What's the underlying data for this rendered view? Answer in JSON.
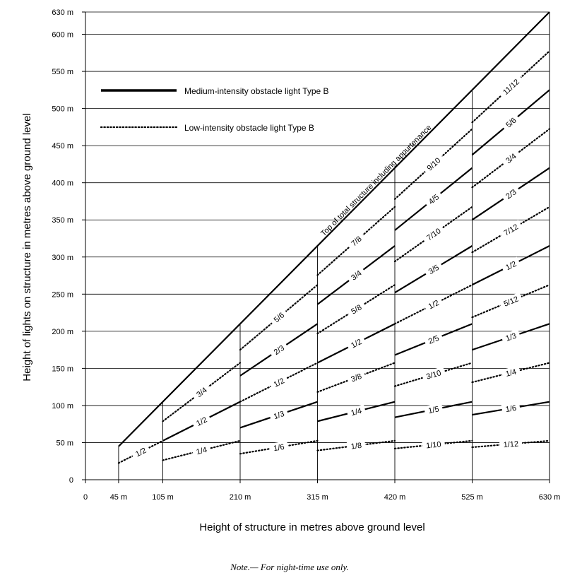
{
  "chart_data": {
    "type": "line",
    "title": "",
    "xlabel": "Height of structure in metres above ground level",
    "ylabel": "Height of lights on structure in metres above ground level",
    "xlim": [
      0,
      630
    ],
    "ylim": [
      0,
      630
    ],
    "x_ticks": [
      {
        "value": 0,
        "label": "0"
      },
      {
        "value": 45,
        "label": "45 m"
      },
      {
        "value": 105,
        "label": "105 m"
      },
      {
        "value": 210,
        "label": "210 m"
      },
      {
        "value": 315,
        "label": "315 m"
      },
      {
        "value": 420,
        "label": "420 m"
      },
      {
        "value": 525,
        "label": "525 m"
      },
      {
        "value": 630,
        "label": "630 m"
      }
    ],
    "y_ticks": [
      {
        "value": 0,
        "label": "0"
      },
      {
        "value": 50,
        "label": "50 m"
      },
      {
        "value": 100,
        "label": "100 m"
      },
      {
        "value": 150,
        "label": "150 m"
      },
      {
        "value": 200,
        "label": "200 m"
      },
      {
        "value": 250,
        "label": "250 m"
      },
      {
        "value": 300,
        "label": "300 m"
      },
      {
        "value": 350,
        "label": "350 m"
      },
      {
        "value": 400,
        "label": "400 m"
      },
      {
        "value": 450,
        "label": "450 m"
      },
      {
        "value": 500,
        "label": "500 m"
      },
      {
        "value": 550,
        "label": "550 m"
      },
      {
        "value": 600,
        "label": "600 m"
      },
      {
        "value": 630,
        "label": "630 m"
      }
    ],
    "grid": "horizontal",
    "legend": [
      {
        "name": "Medium-intensity obstacle light Type B",
        "style": "solid"
      },
      {
        "name": "Low-intensity obstacle light Type B",
        "style": "dotted"
      }
    ],
    "top_line_label": "Top of total structure including appurtenance",
    "top_line": {
      "x": [
        45,
        630
      ],
      "y": [
        45,
        630
      ]
    },
    "dividers": [
      45,
      105,
      210,
      315,
      420,
      525
    ],
    "segments": [
      {
        "x0": 45,
        "x1": 105,
        "label": "1/2",
        "style": "dotted"
      },
      {
        "x0": 105,
        "x1": 210,
        "label": "3/4",
        "style": "dotted"
      },
      {
        "x0": 105,
        "x1": 210,
        "label": "1/2",
        "style": "solid"
      },
      {
        "x0": 105,
        "x1": 210,
        "label": "1/4",
        "style": "dotted"
      },
      {
        "x0": 210,
        "x1": 315,
        "label": "5/6",
        "style": "dotted"
      },
      {
        "x0": 210,
        "x1": 315,
        "label": "2/3",
        "style": "solid"
      },
      {
        "x0": 210,
        "x1": 315,
        "label": "1/2",
        "style": "dotted"
      },
      {
        "x0": 210,
        "x1": 315,
        "label": "1/3",
        "style": "solid"
      },
      {
        "x0": 210,
        "x1": 315,
        "label": "1/6",
        "style": "dotted"
      },
      {
        "x0": 315,
        "x1": 420,
        "label": "7/8",
        "style": "dotted"
      },
      {
        "x0": 315,
        "x1": 420,
        "label": "3/4",
        "style": "solid"
      },
      {
        "x0": 315,
        "x1": 420,
        "label": "5/8",
        "style": "dotted"
      },
      {
        "x0": 315,
        "x1": 420,
        "label": "1/2",
        "style": "solid"
      },
      {
        "x0": 315,
        "x1": 420,
        "label": "3/8",
        "style": "dotted"
      },
      {
        "x0": 315,
        "x1": 420,
        "label": "1/4",
        "style": "solid"
      },
      {
        "x0": 315,
        "x1": 420,
        "label": "1/8",
        "style": "dotted"
      },
      {
        "x0": 420,
        "x1": 525,
        "label": "9/10",
        "style": "dotted"
      },
      {
        "x0": 420,
        "x1": 525,
        "label": "4/5",
        "style": "solid"
      },
      {
        "x0": 420,
        "x1": 525,
        "label": "7/10",
        "style": "dotted"
      },
      {
        "x0": 420,
        "x1": 525,
        "label": "3/5",
        "style": "solid"
      },
      {
        "x0": 420,
        "x1": 525,
        "label": "1/2",
        "style": "dotted"
      },
      {
        "x0": 420,
        "x1": 525,
        "label": "2/5",
        "style": "solid"
      },
      {
        "x0": 420,
        "x1": 525,
        "label": "3/10",
        "style": "dotted"
      },
      {
        "x0": 420,
        "x1": 525,
        "label": "1/5",
        "style": "solid"
      },
      {
        "x0": 420,
        "x1": 525,
        "label": "1/10",
        "style": "dotted"
      },
      {
        "x0": 525,
        "x1": 630,
        "label": "11/12",
        "style": "dotted"
      },
      {
        "x0": 525,
        "x1": 630,
        "label": "5/6",
        "style": "solid"
      },
      {
        "x0": 525,
        "x1": 630,
        "label": "3/4",
        "style": "dotted"
      },
      {
        "x0": 525,
        "x1": 630,
        "label": "2/3",
        "style": "solid"
      },
      {
        "x0": 525,
        "x1": 630,
        "label": "7/12",
        "style": "dotted"
      },
      {
        "x0": 525,
        "x1": 630,
        "label": "1/2",
        "style": "solid"
      },
      {
        "x0": 525,
        "x1": 630,
        "label": "5/12",
        "style": "dotted"
      },
      {
        "x0": 525,
        "x1": 630,
        "label": "1/3",
        "style": "solid"
      },
      {
        "x0": 525,
        "x1": 630,
        "label": "1/4",
        "style": "dotted"
      },
      {
        "x0": 525,
        "x1": 630,
        "label": "1/6",
        "style": "solid"
      },
      {
        "x0": 525,
        "x1": 630,
        "label": "1/12",
        "style": "dotted"
      }
    ]
  },
  "note": "Note.— For night-time use only."
}
